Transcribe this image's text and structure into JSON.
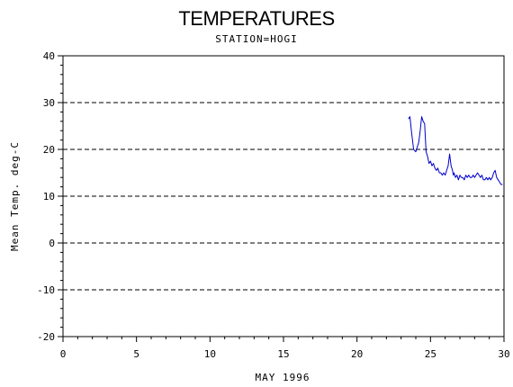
{
  "chart_data": {
    "type": "line",
    "title": "TEMPERATURES",
    "subtitle": "STATION=HOGI",
    "xlabel": "MAY 1996",
    "ylabel": "Mean Temp. deg-C",
    "xlim": [
      0,
      30
    ],
    "ylim": [
      -20,
      40
    ],
    "xticks": [
      0,
      5,
      10,
      15,
      20,
      25,
      30
    ],
    "yticks": [
      -20,
      -10,
      0,
      10,
      20,
      30,
      40
    ],
    "grid": "horizontal dashed at major y ticks",
    "line_color": "#0000cc",
    "series": [
      {
        "x": [
          23.5,
          23.6,
          23.7,
          23.85,
          24.0,
          24.1,
          24.2,
          24.3,
          24.4,
          24.5,
          24.6,
          24.7,
          24.8,
          24.9,
          25.0,
          25.1,
          25.2,
          25.3,
          25.4,
          25.5,
          25.6,
          25.7,
          25.8,
          25.9,
          26.0,
          26.1,
          26.2,
          26.3,
          26.4,
          26.5,
          26.55,
          26.6,
          26.7,
          26.8,
          26.9,
          27.0,
          27.1,
          27.2,
          27.3,
          27.4,
          27.5,
          27.6,
          27.7,
          27.8,
          27.9,
          28.0,
          28.1,
          28.2,
          28.3,
          28.4,
          28.5,
          28.6,
          28.7,
          28.8,
          28.9,
          29.0,
          29.1,
          29.2,
          29.3,
          29.4,
          29.5,
          29.6,
          29.7,
          29.8,
          29.9
        ],
        "y": [
          26.5,
          27.0,
          24.0,
          20.0,
          19.5,
          20.5,
          21.5,
          24.0,
          27.0,
          26.0,
          25.5,
          19.5,
          18.5,
          17.0,
          17.5,
          16.5,
          17.0,
          16.0,
          15.5,
          16.0,
          15.0,
          15.0,
          14.5,
          15.0,
          14.5,
          15.5,
          16.5,
          19.0,
          16.5,
          15.5,
          14.5,
          15.0,
          14.0,
          14.5,
          13.5,
          14.5,
          14.0,
          14.0,
          13.5,
          14.5,
          14.0,
          14.5,
          14.0,
          14.0,
          14.5,
          14.0,
          14.5,
          15.0,
          14.5,
          14.0,
          14.5,
          13.5,
          13.5,
          14.0,
          13.5,
          14.0,
          13.5,
          14.0,
          15.0,
          15.5,
          14.0,
          13.5,
          13.0,
          12.5,
          12.5
        ]
      }
    ]
  }
}
